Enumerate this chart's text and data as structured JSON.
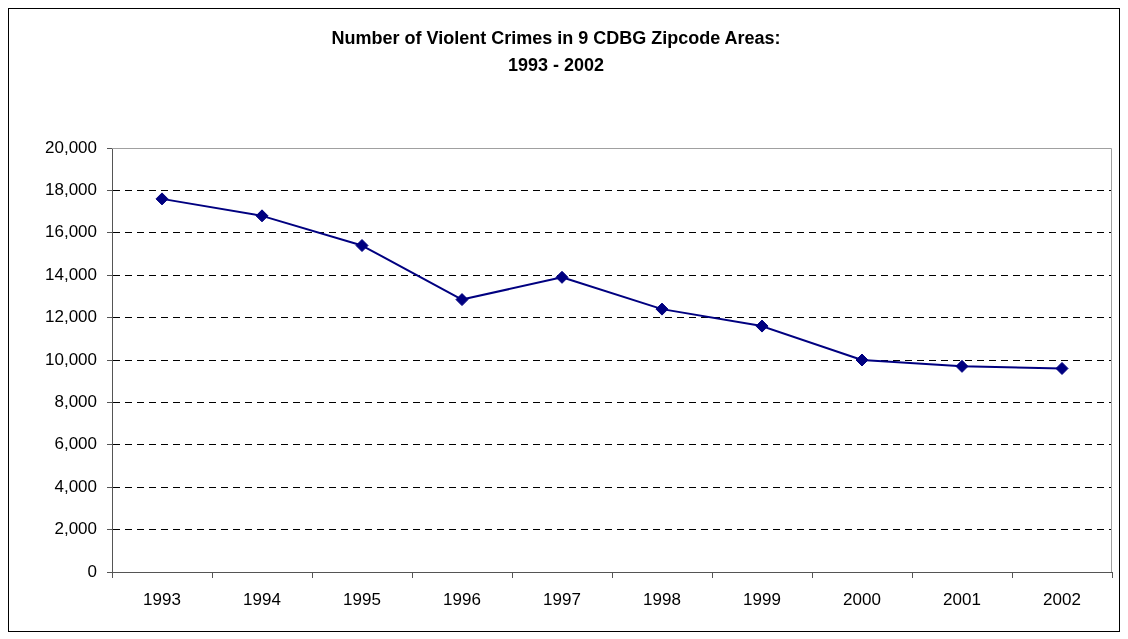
{
  "chart_data": {
    "type": "line",
    "title": "Number of Violent Crimes in 9 CDBG Zipcode Areas:\n1993 - 2002",
    "categories": [
      "1993",
      "1994",
      "1995",
      "1996",
      "1997",
      "1998",
      "1999",
      "2000",
      "2001",
      "2002"
    ],
    "series": [
      {
        "color": "#000080",
        "values": [
          17600,
          16800,
          15400,
          12850,
          13900,
          12400,
          11600,
          10000,
          9700,
          9600
        ]
      }
    ],
    "ylim": [
      0,
      20000
    ],
    "yticks": [
      0,
      {
        "value": 2000,
        "label": "2,000"
      },
      {
        "value": 4000,
        "label": "4,000"
      },
      {
        "value": 6000,
        "label": "6,000"
      },
      {
        "value": 8000,
        "label": "8,000"
      },
      {
        "value": 10000,
        "label": "10,000"
      },
      {
        "value": 12000,
        "label": "12,000"
      },
      {
        "value": 14000,
        "label": "14,000"
      },
      {
        "value": 16000,
        "label": "16,000"
      },
      {
        "value": 18000,
        "label": "18,000"
      },
      {
        "value": 20000,
        "label": "20,000"
      }
    ],
    "grid": "y",
    "legend": false,
    "marker": "diamond",
    "line_style": "solid"
  }
}
